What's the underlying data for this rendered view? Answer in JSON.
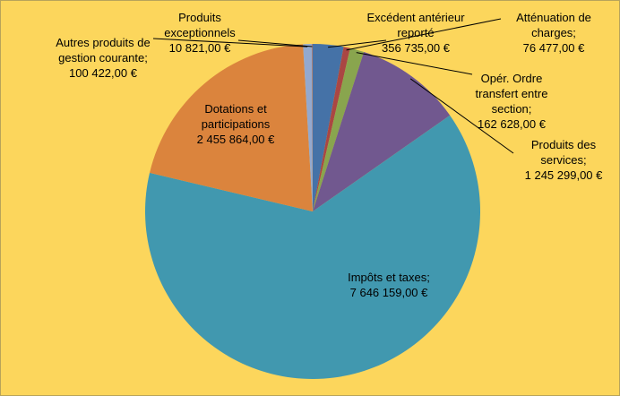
{
  "chart_data": {
    "type": "pie",
    "categories": [
      "Excédent antérieur reporté",
      "Atténuation de charges;",
      "Opér. Ordre transfert entre section;",
      "Produits des services;",
      "Impôts et taxes;",
      "Dotations et participations",
      "Autres produits de gestion courante;",
      "Produits exceptionnels"
    ],
    "values": [
      356735,
      76477,
      162628,
      1245299,
      7646159,
      2455864,
      100422,
      10821
    ],
    "value_labels": [
      "356 735,00 €",
      "76 477,00 €",
      "162 628,00 €",
      "1 245 299,00 €",
      "7 646 159,00 €",
      "2 455 864,00 €",
      "100 422,00 €",
      "10 821,00 €"
    ],
    "colors": [
      "#4572a7",
      "#aa4643",
      "#89a54e",
      "#71588f",
      "#4198af",
      "#db843d",
      "#93a9cf",
      "#a47d7c"
    ]
  }
}
